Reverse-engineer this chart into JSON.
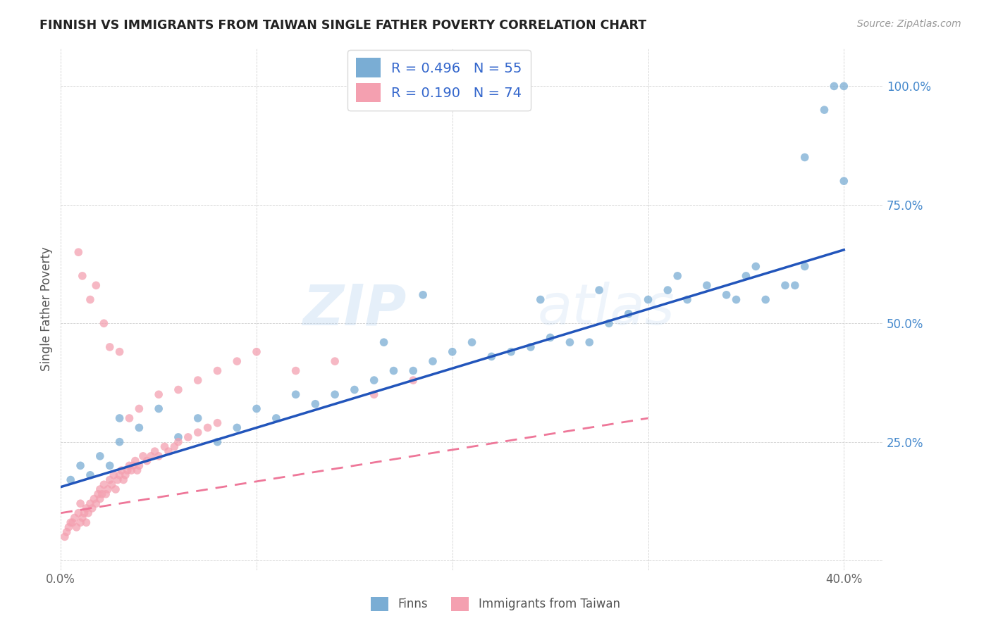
{
  "title": "FINNISH VS IMMIGRANTS FROM TAIWAN SINGLE FATHER POVERTY CORRELATION CHART",
  "source": "Source: ZipAtlas.com",
  "ylabel": "Single Father Poverty",
  "watermark_zip": "ZIP",
  "watermark_atlas": "atlas",
  "xlim": [
    0.0,
    0.42
  ],
  "ylim": [
    -0.02,
    1.08
  ],
  "xticks": [
    0.0,
    0.1,
    0.2,
    0.3,
    0.4
  ],
  "xtick_labels": [
    "0.0%",
    "",
    "",
    "",
    "40.0%"
  ],
  "yticks": [
    0.0,
    0.25,
    0.5,
    0.75,
    1.0
  ],
  "ytick_labels": [
    "",
    "25.0%",
    "50.0%",
    "75.0%",
    "100.0%"
  ],
  "finns_color": "#7aadd4",
  "taiwan_color": "#f4a0b0",
  "finns_line_color": "#2255bb",
  "taiwan_line_color": "#ee7799",
  "finns_R": 0.496,
  "finns_N": 55,
  "taiwan_R": 0.19,
  "taiwan_N": 74,
  "legend_label_finns": "Finns",
  "legend_label_taiwan": "Immigrants from Taiwan",
  "finns_x": [
    0.005,
    0.01,
    0.015,
    0.02,
    0.025,
    0.03,
    0.03,
    0.04,
    0.05,
    0.06,
    0.07,
    0.08,
    0.09,
    0.1,
    0.11,
    0.12,
    0.13,
    0.14,
    0.15,
    0.16,
    0.17,
    0.18,
    0.19,
    0.2,
    0.21,
    0.22,
    0.23,
    0.24,
    0.25,
    0.26,
    0.27,
    0.28,
    0.29,
    0.3,
    0.31,
    0.32,
    0.33,
    0.34,
    0.35,
    0.36,
    0.37,
    0.38,
    0.165,
    0.185,
    0.245,
    0.275,
    0.315,
    0.345,
    0.355,
    0.375,
    0.38,
    0.39,
    0.395,
    0.4,
    0.4
  ],
  "finns_y": [
    0.17,
    0.2,
    0.18,
    0.22,
    0.2,
    0.25,
    0.3,
    0.28,
    0.32,
    0.26,
    0.3,
    0.25,
    0.28,
    0.32,
    0.3,
    0.35,
    0.33,
    0.35,
    0.36,
    0.38,
    0.4,
    0.4,
    0.42,
    0.44,
    0.46,
    0.43,
    0.44,
    0.45,
    0.47,
    0.46,
    0.46,
    0.5,
    0.52,
    0.55,
    0.57,
    0.55,
    0.58,
    0.56,
    0.6,
    0.55,
    0.58,
    0.62,
    0.46,
    0.56,
    0.55,
    0.57,
    0.6,
    0.55,
    0.62,
    0.58,
    0.85,
    0.95,
    1.0,
    1.0,
    0.8
  ],
  "taiwan_x": [
    0.002,
    0.003,
    0.004,
    0.005,
    0.006,
    0.007,
    0.008,
    0.009,
    0.01,
    0.01,
    0.011,
    0.012,
    0.013,
    0.013,
    0.014,
    0.015,
    0.016,
    0.017,
    0.018,
    0.019,
    0.02,
    0.02,
    0.021,
    0.022,
    0.023,
    0.024,
    0.025,
    0.026,
    0.027,
    0.028,
    0.029,
    0.03,
    0.031,
    0.032,
    0.033,
    0.034,
    0.035,
    0.036,
    0.037,
    0.038,
    0.039,
    0.04,
    0.042,
    0.044,
    0.046,
    0.048,
    0.05,
    0.053,
    0.055,
    0.058,
    0.06,
    0.065,
    0.07,
    0.075,
    0.08,
    0.009,
    0.011,
    0.015,
    0.018,
    0.022,
    0.025,
    0.03,
    0.035,
    0.04,
    0.05,
    0.06,
    0.07,
    0.08,
    0.09,
    0.1,
    0.12,
    0.14,
    0.16,
    0.18
  ],
  "taiwan_y": [
    0.05,
    0.06,
    0.07,
    0.08,
    0.08,
    0.09,
    0.07,
    0.1,
    0.08,
    0.12,
    0.09,
    0.1,
    0.11,
    0.08,
    0.1,
    0.12,
    0.11,
    0.13,
    0.12,
    0.14,
    0.13,
    0.15,
    0.14,
    0.16,
    0.14,
    0.15,
    0.17,
    0.16,
    0.18,
    0.15,
    0.17,
    0.18,
    0.19,
    0.17,
    0.18,
    0.19,
    0.2,
    0.19,
    0.2,
    0.21,
    0.19,
    0.2,
    0.22,
    0.21,
    0.22,
    0.23,
    0.22,
    0.24,
    0.23,
    0.24,
    0.25,
    0.26,
    0.27,
    0.28,
    0.29,
    0.65,
    0.6,
    0.55,
    0.58,
    0.5,
    0.45,
    0.44,
    0.3,
    0.32,
    0.35,
    0.36,
    0.38,
    0.4,
    0.42,
    0.44,
    0.4,
    0.42,
    0.35,
    0.38
  ]
}
